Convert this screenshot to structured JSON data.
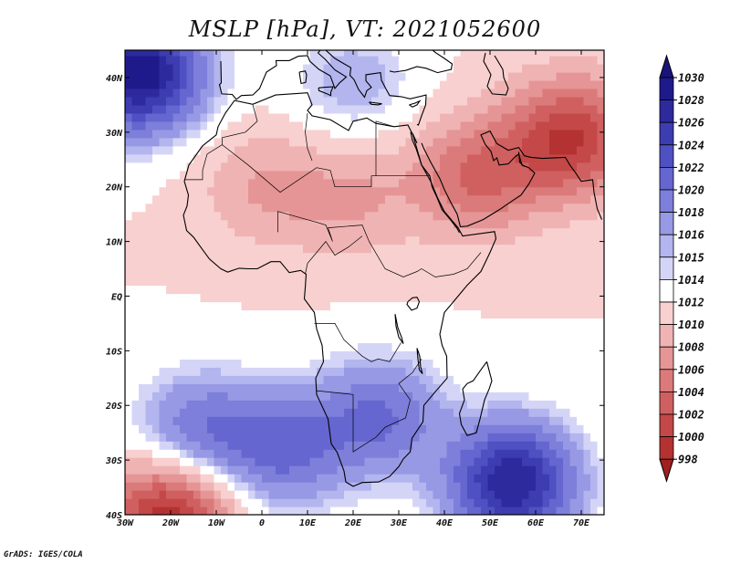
{
  "title": "MSLP [hPa], VT: 2021052600",
  "credit": "GrADS: IGES/COLA",
  "map": {
    "lon_range": [
      -30,
      75
    ],
    "lat_range": [
      -40,
      45
    ],
    "lon_ticks": [
      {
        "value": -30,
        "label": "30W"
      },
      {
        "value": -20,
        "label": "20W"
      },
      {
        "value": -10,
        "label": "10W"
      },
      {
        "value": 0,
        "label": "0"
      },
      {
        "value": 10,
        "label": "10E"
      },
      {
        "value": 20,
        "label": "20E"
      },
      {
        "value": 30,
        "label": "30E"
      },
      {
        "value": 40,
        "label": "40E"
      },
      {
        "value": 50,
        "label": "50E"
      },
      {
        "value": 60,
        "label": "60E"
      },
      {
        "value": 70,
        "label": "70E"
      }
    ],
    "lat_ticks": [
      {
        "value": 40,
        "label": "40N"
      },
      {
        "value": 30,
        "label": "30N"
      },
      {
        "value": 20,
        "label": "20N"
      },
      {
        "value": 10,
        "label": "10N"
      },
      {
        "value": 0,
        "label": "EQ"
      },
      {
        "value": -10,
        "label": "10S"
      },
      {
        "value": -20,
        "label": "20S"
      },
      {
        "value": -30,
        "label": "30S"
      },
      {
        "value": -40,
        "label": "40S"
      }
    ],
    "pressure_field": {
      "background_hpa": 1012,
      "centers": [
        {
          "name": "azores-high",
          "lon": -27,
          "lat": 41,
          "hpa": 1030
        },
        {
          "name": "mascarene-high",
          "lon": 55,
          "lat": -34,
          "hpa": 1028
        },
        {
          "name": "st-helena-high-edge",
          "lon": -14,
          "lat": -25,
          "hpa": 1020
        },
        {
          "name": "southern-africa-high",
          "lon": 26,
          "lat": -22,
          "hpa": 1020
        },
        {
          "name": "south-atlantic-ridge",
          "lon": 5,
          "lat": -28,
          "hpa": 1020
        },
        {
          "name": "mediterranean-high",
          "lon": 20,
          "lat": 39,
          "hpa": 1016
        },
        {
          "name": "iran-pakistan-low",
          "lon": 68,
          "lat": 29,
          "hpa": 1000
        },
        {
          "name": "arabian-low",
          "lon": 47,
          "lat": 22,
          "hpa": 1004
        },
        {
          "name": "saharan-low-west",
          "lon": 0,
          "lat": 20,
          "hpa": 1008
        },
        {
          "name": "saharan-low-east",
          "lon": 20,
          "lat": 18,
          "hpa": 1008
        },
        {
          "name": "southwest-atlantic-low",
          "lon": -20,
          "lat": -40,
          "hpa": 998
        }
      ]
    }
  },
  "colorbar": {
    "levels": [
      {
        "label": "1030",
        "color": "#1f1a8c"
      },
      {
        "label": "1028",
        "color": "#2d2a9e"
      },
      {
        "label": "1026",
        "color": "#3d3cb0"
      },
      {
        "label": "1024",
        "color": "#4f50c2"
      },
      {
        "label": "1022",
        "color": "#6566cf"
      },
      {
        "label": "1020",
        "color": "#7d7fda"
      },
      {
        "label": "1018",
        "color": "#9799e4"
      },
      {
        "label": "1016",
        "color": "#b3b5ee"
      },
      {
        "label": "1015",
        "color": "#d4d5f6"
      },
      {
        "label": "1014",
        "color": "#ffffff"
      },
      {
        "label": "1012",
        "color": "#f8d0d0"
      },
      {
        "label": "1010",
        "color": "#f0b3b3"
      },
      {
        "label": "1008",
        "color": "#e59595"
      },
      {
        "label": "1006",
        "color": "#db7a7a"
      },
      {
        "label": "1004",
        "color": "#d06060"
      },
      {
        "label": "1002",
        "color": "#c44848"
      },
      {
        "label": "1000",
        "color": "#b53232"
      },
      {
        "label": "998",
        "color": "#a01f1f"
      }
    ],
    "overflow_top_color": "#1a1478",
    "overflow_bottom_color": "#8c1414"
  }
}
